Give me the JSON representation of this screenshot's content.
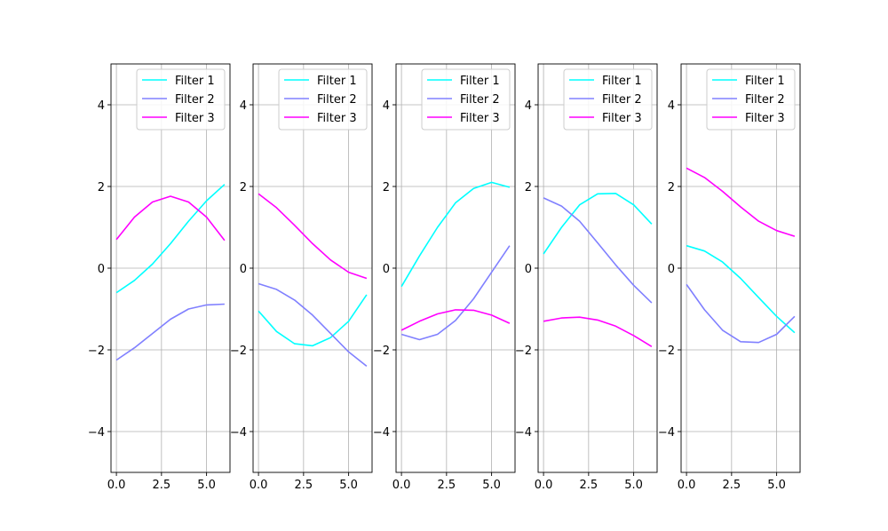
{
  "chart_data": [
    {
      "type": "line",
      "x": [
        0,
        1,
        2,
        3,
        4,
        5,
        6
      ],
      "xlim": [
        -0.3,
        6.3
      ],
      "ylim": [
        -5,
        5
      ],
      "xticks": [
        0,
        2.5,
        5
      ],
      "xtick_labels": [
        "0.0",
        "2.5",
        "5.0"
      ],
      "yticks": [
        -4,
        -2,
        0,
        2,
        4
      ],
      "ytick_labels": [
        "−4",
        "−2",
        "0",
        "2",
        "4"
      ],
      "grid": true,
      "legend_position": "upper right",
      "series": [
        {
          "name": "Filter 1",
          "color": "#00ffff",
          "values": [
            -0.6,
            -0.3,
            0.1,
            0.6,
            1.15,
            1.65,
            2.05
          ]
        },
        {
          "name": "Filter 2",
          "color": "#8080ff",
          "values": [
            -2.25,
            -1.95,
            -1.6,
            -1.25,
            -1.0,
            -0.9,
            -0.88
          ]
        },
        {
          "name": "Filter 3",
          "color": "#ff00ff",
          "values": [
            0.7,
            1.25,
            1.62,
            1.76,
            1.62,
            1.25,
            0.68
          ]
        }
      ]
    },
    {
      "type": "line",
      "x": [
        0,
        1,
        2,
        3,
        4,
        5,
        6
      ],
      "xlim": [
        -0.3,
        6.3
      ],
      "ylim": [
        -5,
        5
      ],
      "xticks": [
        0,
        2.5,
        5
      ],
      "xtick_labels": [
        "0.0",
        "2.5",
        "5.0"
      ],
      "yticks": [
        -4,
        -2,
        0,
        2,
        4
      ],
      "ytick_labels": [
        "−4",
        "−2",
        "0",
        "2",
        "4"
      ],
      "grid": true,
      "legend_position": "upper right",
      "series": [
        {
          "name": "Filter 1",
          "color": "#00ffff",
          "values": [
            -1.05,
            -1.55,
            -1.85,
            -1.9,
            -1.7,
            -1.3,
            -0.65
          ]
        },
        {
          "name": "Filter 2",
          "color": "#8080ff",
          "values": [
            -0.38,
            -0.52,
            -0.78,
            -1.15,
            -1.6,
            -2.05,
            -2.4
          ]
        },
        {
          "name": "Filter 3",
          "color": "#ff00ff",
          "values": [
            1.82,
            1.48,
            1.05,
            0.6,
            0.2,
            -0.1,
            -0.25
          ]
        }
      ]
    },
    {
      "type": "line",
      "x": [
        0,
        1,
        2,
        3,
        4,
        5,
        6
      ],
      "xlim": [
        -0.3,
        6.3
      ],
      "ylim": [
        -5,
        5
      ],
      "xticks": [
        0,
        2.5,
        5
      ],
      "xtick_labels": [
        "0.0",
        "2.5",
        "5.0"
      ],
      "yticks": [
        -4,
        -2,
        0,
        2,
        4
      ],
      "ytick_labels": [
        "−4",
        "−2",
        "0",
        "2",
        "4"
      ],
      "grid": true,
      "legend_position": "upper right",
      "series": [
        {
          "name": "Filter 1",
          "color": "#00ffff",
          "values": [
            -0.45,
            0.3,
            1.0,
            1.6,
            1.95,
            2.1,
            1.98
          ]
        },
        {
          "name": "Filter 2",
          "color": "#8080ff",
          "values": [
            -1.62,
            -1.75,
            -1.62,
            -1.28,
            -0.75,
            -0.1,
            0.55
          ]
        },
        {
          "name": "Filter 3",
          "color": "#ff00ff",
          "values": [
            -1.52,
            -1.3,
            -1.12,
            -1.02,
            -1.03,
            -1.15,
            -1.35
          ]
        }
      ]
    },
    {
      "type": "line",
      "x": [
        0,
        1,
        2,
        3,
        4,
        5,
        6
      ],
      "xlim": [
        -0.3,
        6.3
      ],
      "ylim": [
        -5,
        5
      ],
      "xticks": [
        0,
        2.5,
        5
      ],
      "xtick_labels": [
        "0.0",
        "2.5",
        "5.0"
      ],
      "yticks": [
        -4,
        -2,
        0,
        2,
        4
      ],
      "ytick_labels": [
        "−4",
        "−2",
        "0",
        "2",
        "4"
      ],
      "grid": true,
      "legend_position": "upper right",
      "series": [
        {
          "name": "Filter 1",
          "color": "#00ffff",
          "values": [
            0.35,
            1.0,
            1.55,
            1.82,
            1.83,
            1.55,
            1.08
          ]
        },
        {
          "name": "Filter 2",
          "color": "#8080ff",
          "values": [
            1.72,
            1.52,
            1.15,
            0.62,
            0.08,
            -0.42,
            -0.85
          ]
        },
        {
          "name": "Filter 3",
          "color": "#ff00ff",
          "values": [
            -1.3,
            -1.22,
            -1.2,
            -1.27,
            -1.42,
            -1.65,
            -1.92
          ]
        }
      ]
    },
    {
      "type": "line",
      "x": [
        0,
        1,
        2,
        3,
        4,
        5,
        6
      ],
      "xlim": [
        -0.3,
        6.3
      ],
      "ylim": [
        -5,
        5
      ],
      "xticks": [
        0,
        2.5,
        5
      ],
      "xtick_labels": [
        "0.0",
        "2.5",
        "5.0"
      ],
      "yticks": [
        -4,
        -2,
        0,
        2,
        4
      ],
      "ytick_labels": [
        "−4",
        "−2",
        "0",
        "2",
        "4"
      ],
      "grid": true,
      "legend_position": "upper right",
      "series": [
        {
          "name": "Filter 1",
          "color": "#00ffff",
          "values": [
            0.55,
            0.42,
            0.15,
            -0.25,
            -0.72,
            -1.18,
            -1.58
          ]
        },
        {
          "name": "Filter 2",
          "color": "#8080ff",
          "values": [
            -0.4,
            -1.02,
            -1.52,
            -1.8,
            -1.82,
            -1.62,
            -1.18
          ]
        },
        {
          "name": "Filter 3",
          "color": "#ff00ff",
          "values": [
            2.45,
            2.22,
            1.88,
            1.5,
            1.15,
            0.92,
            0.78
          ]
        }
      ]
    }
  ]
}
